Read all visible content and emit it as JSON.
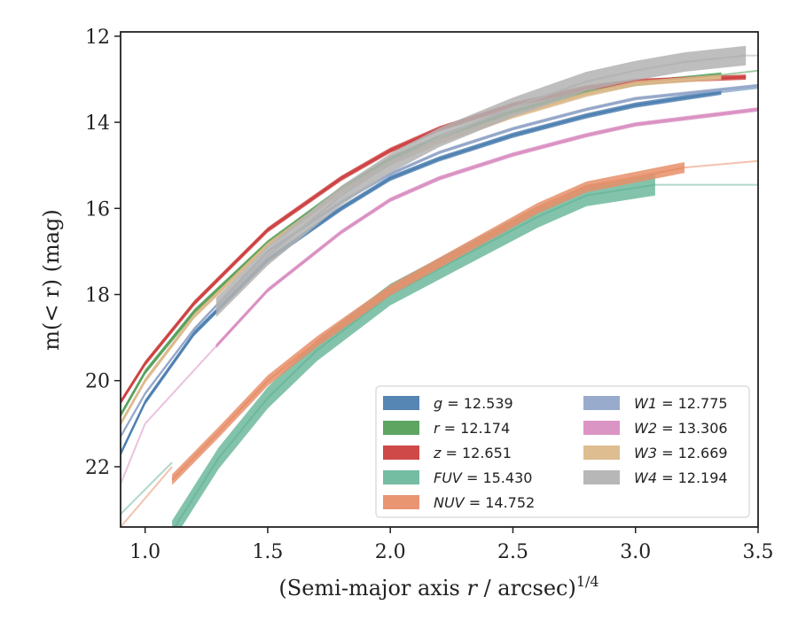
{
  "chart_data": {
    "type": "line",
    "xlabel_main": "(Semi-major axis ",
    "xlabel_var": "r",
    "xlabel_rest": " / arcsec)",
    "xlabel_sup": "1/4",
    "ylabel": "m(< r) (mag)",
    "xlim": [
      0.9,
      3.5
    ],
    "ylim": [
      23.4,
      11.9
    ],
    "y_inverted": true,
    "xticks": [
      1.0,
      1.5,
      2.0,
      2.5,
      3.0,
      3.5
    ],
    "xtick_labels": [
      "1.0",
      "1.5",
      "2.0",
      "2.5",
      "3.0",
      "3.5"
    ],
    "yticks": [
      12,
      14,
      16,
      18,
      20,
      22
    ],
    "ytick_labels": [
      "12",
      "14",
      "16",
      "18",
      "20",
      "22"
    ],
    "grid": false,
    "legend_position": "lower-right",
    "legend_columns": 2,
    "series": [
      {
        "name": "g",
        "value": "12.539",
        "color": "#4c7fb0",
        "x": [
          0.9,
          1.0,
          1.2,
          1.5,
          1.8,
          2.0,
          2.2,
          2.5,
          2.8,
          3.0,
          3.35
        ],
        "y": [
          21.7,
          20.5,
          18.9,
          17.2,
          16.0,
          15.3,
          14.85,
          14.3,
          13.85,
          13.6,
          13.3
        ],
        "ext_x": [
          3.35,
          3.5
        ],
        "ext_y": [
          13.3,
          13.2
        ],
        "band": 0.12
      },
      {
        "name": "r",
        "value": "12.174",
        "color": "#55a05a",
        "x": [
          0.9,
          1.0,
          1.2,
          1.5,
          1.8,
          2.0,
          2.2,
          2.5,
          2.8,
          3.0,
          3.35
        ],
        "y": [
          20.8,
          19.8,
          18.4,
          16.8,
          15.55,
          14.85,
          14.35,
          13.75,
          13.3,
          13.1,
          12.9
        ],
        "ext_x": [
          3.35,
          3.5
        ],
        "ext_y": [
          12.9,
          12.8
        ],
        "band": 0.12
      },
      {
        "name": "z",
        "value": "12.651",
        "color": "#cc3f3f",
        "x": [
          0.9,
          1.0,
          1.2,
          1.5,
          1.8,
          2.0,
          2.2,
          2.5,
          2.8,
          3.0,
          3.45
        ],
        "y": [
          20.5,
          19.6,
          18.2,
          16.5,
          15.3,
          14.65,
          14.15,
          13.6,
          13.2,
          13.05,
          12.95
        ],
        "ext_x": [],
        "ext_y": [],
        "band": 0.12
      },
      {
        "name": "FUV",
        "value": "15.430",
        "color": "#6db89d",
        "x": [
          1.11,
          1.3,
          1.5,
          1.7,
          2.0,
          2.3,
          2.6,
          2.8,
          3.08
        ],
        "y": [
          23.5,
          21.8,
          20.4,
          19.3,
          18.0,
          17.1,
          16.2,
          15.7,
          15.45
        ],
        "ext_x": [
          0.9,
          1.11
        ],
        "ext_y": [
          23.1,
          21.9
        ],
        "ext2_x": [
          3.08,
          3.5
        ],
        "ext2_y": [
          15.45,
          15.45
        ],
        "band": 0.5
      },
      {
        "name": "NUV",
        "value": "14.752",
        "color": "#e88f6a",
        "x": [
          1.11,
          1.3,
          1.5,
          1.7,
          2.0,
          2.3,
          2.6,
          2.8,
          3.2
        ],
        "y": [
          22.3,
          21.2,
          20.0,
          19.1,
          17.9,
          16.95,
          16.0,
          15.5,
          15.05
        ],
        "ext_x": [
          0.9,
          1.11
        ],
        "ext_y": [
          23.4,
          22.0
        ],
        "ext2_x": [
          3.2,
          3.5
        ],
        "ext2_y": [
          15.05,
          14.9
        ],
        "band": 0.25
      },
      {
        "name": "W1",
        "value": "12.775",
        "color": "#93a6c9",
        "x": [
          0.9,
          1.0,
          1.2,
          1.5,
          1.8,
          2.0,
          2.2,
          2.5,
          2.8,
          3.0,
          3.5
        ],
        "y": [
          21.3,
          20.3,
          18.8,
          17.0,
          15.85,
          15.2,
          14.7,
          14.15,
          13.7,
          13.45,
          13.15
        ],
        "ext_x": [],
        "ext_y": [],
        "band": 0.08
      },
      {
        "name": "W2",
        "value": "13.306",
        "color": "#d98fc2",
        "x": [
          1.29,
          1.5,
          1.8,
          2.0,
          2.2,
          2.5,
          2.8,
          3.0,
          3.5
        ],
        "y": [
          19.2,
          17.9,
          16.55,
          15.8,
          15.3,
          14.75,
          14.3,
          14.05,
          13.7
        ],
        "ext_x": [
          0.9,
          1.0,
          1.29
        ],
        "ext_y": [
          22.4,
          21.0,
          19.2
        ],
        "band": 0.1
      },
      {
        "name": "W3",
        "value": "12.669",
        "color": "#dcb98b",
        "x": [
          0.9,
          1.0,
          1.2,
          1.5,
          1.8,
          2.0,
          2.2,
          2.5,
          2.8,
          3.0,
          3.35
        ],
        "y": [
          21.0,
          20.0,
          18.5,
          16.85,
          15.6,
          14.95,
          14.45,
          13.85,
          13.35,
          13.1,
          12.95
        ],
        "ext_x": [],
        "ext_y": [],
        "band": 0.12
      },
      {
        "name": "W4",
        "value": "12.194",
        "color": "#b3b3b3",
        "x": [
          1.29,
          1.5,
          1.8,
          2.0,
          2.2,
          2.5,
          2.8,
          3.0,
          3.2,
          3.45
        ],
        "y": [
          18.3,
          17.1,
          15.7,
          14.95,
          14.35,
          13.65,
          13.05,
          12.8,
          12.6,
          12.45
        ],
        "ext_x": [
          3.45,
          3.5
        ],
        "ext_y": [
          12.45,
          12.45
        ],
        "band": 0.45
      }
    ]
  }
}
